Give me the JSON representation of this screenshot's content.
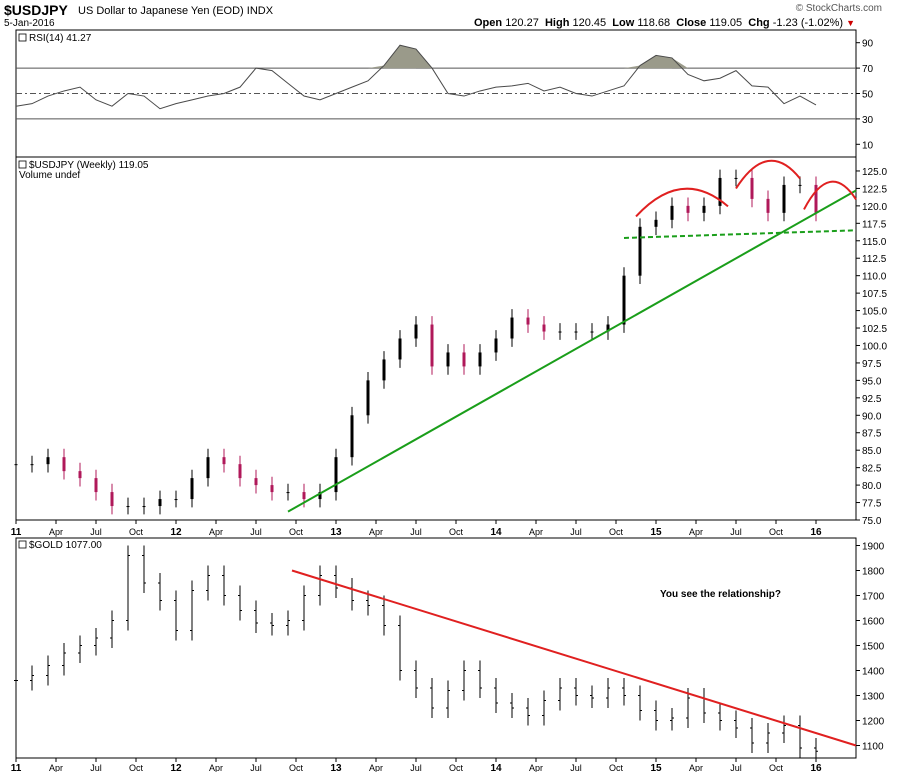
{
  "header": {
    "symbol": "$USDJPY",
    "description": "US Dollar to Japanese Yen (EOD)",
    "exchange": "INDX",
    "date": "5-Jan-2016",
    "open_label": "Open",
    "open": "120.27",
    "high_label": "High",
    "high": "120.45",
    "low_label": "Low",
    "low": "118.68",
    "close_label": "Close",
    "close": "119.05",
    "chg_label": "Chg",
    "chg": "-1.23 (-1.02%)",
    "chg_color": "#cc0000",
    "brand": "© StockCharts.com"
  },
  "chart_data": [
    {
      "type": "line",
      "panel": "rsi",
      "label": "RSI(14) 41.27",
      "ylim": [
        0,
        100
      ],
      "yticks": [
        10,
        30,
        50,
        70,
        90
      ],
      "reference_lines": [
        30,
        50,
        70
      ],
      "series": [
        {
          "x": [
            0,
            4,
            8,
            12,
            16,
            20,
            24,
            28,
            32,
            36,
            40,
            44,
            48,
            52,
            56,
            60,
            64,
            68,
            72,
            76,
            80,
            84,
            88,
            92,
            96,
            100,
            104,
            108,
            112,
            116,
            120,
            124,
            128,
            132,
            136,
            140,
            144,
            148,
            152,
            156,
            160,
            164,
            168,
            172,
            176,
            180,
            184,
            188,
            192,
            196,
            200
          ],
          "values": [
            40,
            42,
            48,
            52,
            55,
            45,
            40,
            50,
            48,
            38,
            42,
            45,
            48,
            50,
            55,
            70,
            68,
            58,
            48,
            45,
            50,
            55,
            60,
            72,
            88,
            85,
            70,
            50,
            48,
            52,
            55,
            56,
            58,
            52,
            55,
            50,
            48,
            52,
            56,
            72,
            80,
            78,
            65,
            60,
            62,
            68,
            56,
            55,
            42,
            48,
            41
          ]
        }
      ],
      "line_color": "#4a4a4a",
      "fill_color": "#9a9a8a"
    },
    {
      "type": "candlestick",
      "panel": "price",
      "label": "$USDJPY (Weekly) 119.05",
      "volume_label": "Volume undef",
      "ylim": [
        75,
        127
      ],
      "yticks": [
        75.0,
        77.5,
        80.0,
        82.5,
        85.0,
        87.5,
        90.0,
        92.5,
        95.0,
        97.5,
        100.0,
        102.5,
        105.0,
        107.5,
        110.0,
        112.5,
        115.0,
        117.5,
        120.0,
        122.5,
        125.0
      ],
      "xticks": [
        "11",
        "Apr",
        "Jul",
        "Oct",
        "12",
        "Apr",
        "Jul",
        "Oct",
        "13",
        "Apr",
        "Jul",
        "Oct",
        "14",
        "Apr",
        "Jul",
        "Oct",
        "15",
        "Apr",
        "Jul",
        "Oct",
        "16"
      ],
      "series": [
        {
          "x": [
            0,
            4,
            8,
            12,
            16,
            20,
            24,
            28,
            32,
            36,
            40,
            44,
            48,
            52,
            56,
            60,
            64,
            68,
            72,
            76,
            80,
            84,
            88,
            92,
            96,
            100,
            104,
            108,
            112,
            116,
            120,
            124,
            128,
            132,
            136,
            140,
            144,
            148,
            152,
            156,
            160,
            164,
            168,
            172,
            176,
            180,
            184,
            188,
            192,
            196,
            200
          ],
          "values": [
            83,
            83,
            84,
            82,
            81,
            79,
            77,
            77,
            77,
            78,
            78,
            81,
            84,
            83,
            81,
            80,
            79,
            79,
            78,
            79,
            84,
            90,
            95,
            98,
            101,
            103,
            97,
            99,
            97,
            99,
            101,
            104,
            103,
            102,
            102,
            102,
            102,
            103,
            110,
            117,
            118,
            120,
            119,
            120,
            124,
            124,
            121,
            119,
            123,
            123,
            119
          ]
        }
      ],
      "trendlines": [
        {
          "name": "support",
          "from": [
            68,
            76.2
          ],
          "to": [
            210,
            122.2
          ],
          "color": "#1a9e1a",
          "style": "solid"
        },
        {
          "name": "neckline",
          "from": [
            152,
            115.4
          ],
          "to": [
            210,
            116.5
          ],
          "color": "#1a9e1a",
          "style": "dashed"
        }
      ],
      "up_color": "#000000",
      "down_color": "#b0185a"
    },
    {
      "type": "bar",
      "panel": "gold",
      "label": "$GOLD 1077.00",
      "ylim": [
        1050,
        1930
      ],
      "yticks": [
        1100,
        1200,
        1300,
        1400,
        1500,
        1600,
        1700,
        1800,
        1900
      ],
      "xticks": [
        "11",
        "Apr",
        "Jul",
        "Oct",
        "12",
        "Apr",
        "Jul",
        "Oct",
        "13",
        "Apr",
        "Jul",
        "Oct",
        "14",
        "Apr",
        "Jul",
        "Oct",
        "15",
        "Apr",
        "Jul",
        "Oct",
        "16"
      ],
      "series": [
        {
          "x": [
            0,
            4,
            8,
            12,
            16,
            20,
            24,
            28,
            32,
            36,
            40,
            44,
            48,
            52,
            56,
            60,
            64,
            68,
            72,
            76,
            80,
            84,
            88,
            92,
            96,
            100,
            104,
            108,
            112,
            116,
            120,
            124,
            128,
            132,
            136,
            140,
            144,
            148,
            152,
            156,
            160,
            164,
            168,
            172,
            176,
            180,
            184,
            188,
            192,
            196,
            200
          ],
          "values": [
            1360,
            1380,
            1420,
            1470,
            1500,
            1530,
            1600,
            1860,
            1750,
            1680,
            1560,
            1720,
            1780,
            1700,
            1640,
            1590,
            1580,
            1600,
            1700,
            1780,
            1730,
            1680,
            1660,
            1580,
            1400,
            1330,
            1250,
            1320,
            1400,
            1330,
            1270,
            1250,
            1220,
            1280,
            1330,
            1300,
            1290,
            1330,
            1300,
            1240,
            1200,
            1210,
            1290,
            1230,
            1200,
            1170,
            1110,
            1150,
            1180,
            1090,
            1077
          ]
        }
      ],
      "trendlines": [
        {
          "name": "resistance",
          "from": [
            69,
            1800
          ],
          "to": [
            210,
            1100
          ],
          "color": "#e02020",
          "style": "solid"
        }
      ],
      "annotation": "You see the relationship?",
      "annotation_color": "#1a28b8"
    }
  ]
}
